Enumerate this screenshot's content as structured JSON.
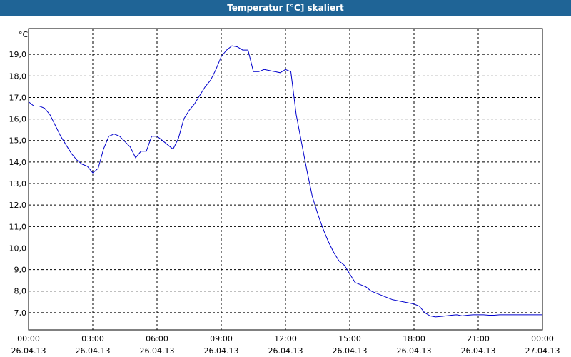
{
  "window": {
    "title": "Temperatur [°C] skaliert"
  },
  "colors": {
    "title_bar": "#1f6496",
    "line": "#0000cc",
    "grid": "#000000",
    "background": "#ffffff"
  },
  "chart_data": {
    "type": "line",
    "title": "Temperatur [°C] skaliert",
    "ylabel": "°C",
    "xlabel": "",
    "grid": true,
    "ylim": [
      6.2,
      20.2
    ],
    "xlim": [
      0,
      24
    ],
    "y_ticks": [
      {
        "value": 7,
        "label": "7,0"
      },
      {
        "value": 8,
        "label": "8,0"
      },
      {
        "value": 9,
        "label": "9,0"
      },
      {
        "value": 10,
        "label": "10,0"
      },
      {
        "value": 11,
        "label": "11,0"
      },
      {
        "value": 12,
        "label": "12,0"
      },
      {
        "value": 13,
        "label": "13,0"
      },
      {
        "value": 14,
        "label": "14,0"
      },
      {
        "value": 15,
        "label": "15,0"
      },
      {
        "value": 16,
        "label": "16,0"
      },
      {
        "value": 17,
        "label": "17,0"
      },
      {
        "value": 18,
        "label": "18,0"
      },
      {
        "value": 19,
        "label": "19,0"
      }
    ],
    "x_ticks": [
      {
        "value": 0,
        "time": "00:00",
        "date": "26.04.13"
      },
      {
        "value": 3,
        "time": "03:00",
        "date": "26.04.13"
      },
      {
        "value": 6,
        "time": "06:00",
        "date": "26.04.13"
      },
      {
        "value": 9,
        "time": "09:00",
        "date": "26.04.13"
      },
      {
        "value": 12,
        "time": "12:00",
        "date": "26.04.13"
      },
      {
        "value": 15,
        "time": "15:00",
        "date": "26.04.13"
      },
      {
        "value": 18,
        "time": "18:00",
        "date": "26.04.13"
      },
      {
        "value": 21,
        "time": "21:00",
        "date": "26.04.13"
      },
      {
        "value": 24,
        "time": "00:00",
        "date": "27.04.13"
      }
    ],
    "series": [
      {
        "x": [
          0,
          0.25,
          0.5,
          0.75,
          1.0,
          1.25,
          1.5,
          1.75,
          2.0,
          2.25,
          2.5,
          2.75,
          3.0,
          3.25,
          3.5,
          3.75,
          4.0,
          4.25,
          4.5,
          4.75,
          5.0,
          5.25,
          5.5,
          5.75,
          6.0,
          6.25,
          6.5,
          6.75,
          7.0,
          7.25,
          7.5,
          7.75,
          8.0,
          8.25,
          8.5,
          8.75,
          9.0,
          9.25,
          9.5,
          9.75,
          10.0,
          10.25,
          10.5,
          10.75,
          11.0,
          11.25,
          11.5,
          11.75,
          12.0,
          12.25,
          12.5,
          12.75,
          13.0,
          13.25,
          13.5,
          13.75,
          14.0,
          14.25,
          14.5,
          14.75,
          15.0,
          15.25,
          15.5,
          15.75,
          16.0,
          16.25,
          16.5,
          16.75,
          17.0,
          17.25,
          17.5,
          17.75,
          18.0,
          18.25,
          18.5,
          18.75,
          19.0,
          19.25,
          19.5,
          19.75,
          20.0,
          20.25,
          20.5,
          20.75,
          21.0,
          21.25,
          21.5,
          21.75,
          22.0,
          22.25,
          22.5,
          22.75,
          23.0,
          23.25,
          23.5,
          23.75,
          24.0
        ],
        "values": [
          16.8,
          16.6,
          16.6,
          16.5,
          16.2,
          15.7,
          15.2,
          14.8,
          14.4,
          14.1,
          13.9,
          13.8,
          13.5,
          13.7,
          14.6,
          15.2,
          15.3,
          15.2,
          14.95,
          14.7,
          14.2,
          14.5,
          14.5,
          15.2,
          15.2,
          15.0,
          14.8,
          14.6,
          15.1,
          16.0,
          16.4,
          16.7,
          17.1,
          17.5,
          17.8,
          18.3,
          18.9,
          19.2,
          19.4,
          19.35,
          19.2,
          19.2,
          18.2,
          18.2,
          18.3,
          18.25,
          18.2,
          18.15,
          18.3,
          18.2,
          16.2,
          14.9,
          13.6,
          12.4,
          11.6,
          10.9,
          10.3,
          9.8,
          9.4,
          9.2,
          8.8,
          8.4,
          8.3,
          8.2,
          8.0,
          7.9,
          7.8,
          7.7,
          7.6,
          7.55,
          7.5,
          7.45,
          7.4,
          7.3,
          7.0,
          6.85,
          6.8,
          6.82,
          6.85,
          6.88,
          6.9,
          6.85,
          6.88,
          6.9,
          6.9,
          6.9,
          6.88,
          6.88,
          6.9,
          6.9,
          6.9,
          6.9,
          6.9,
          6.9,
          6.9,
          6.9,
          6.9
        ]
      }
    ]
  }
}
